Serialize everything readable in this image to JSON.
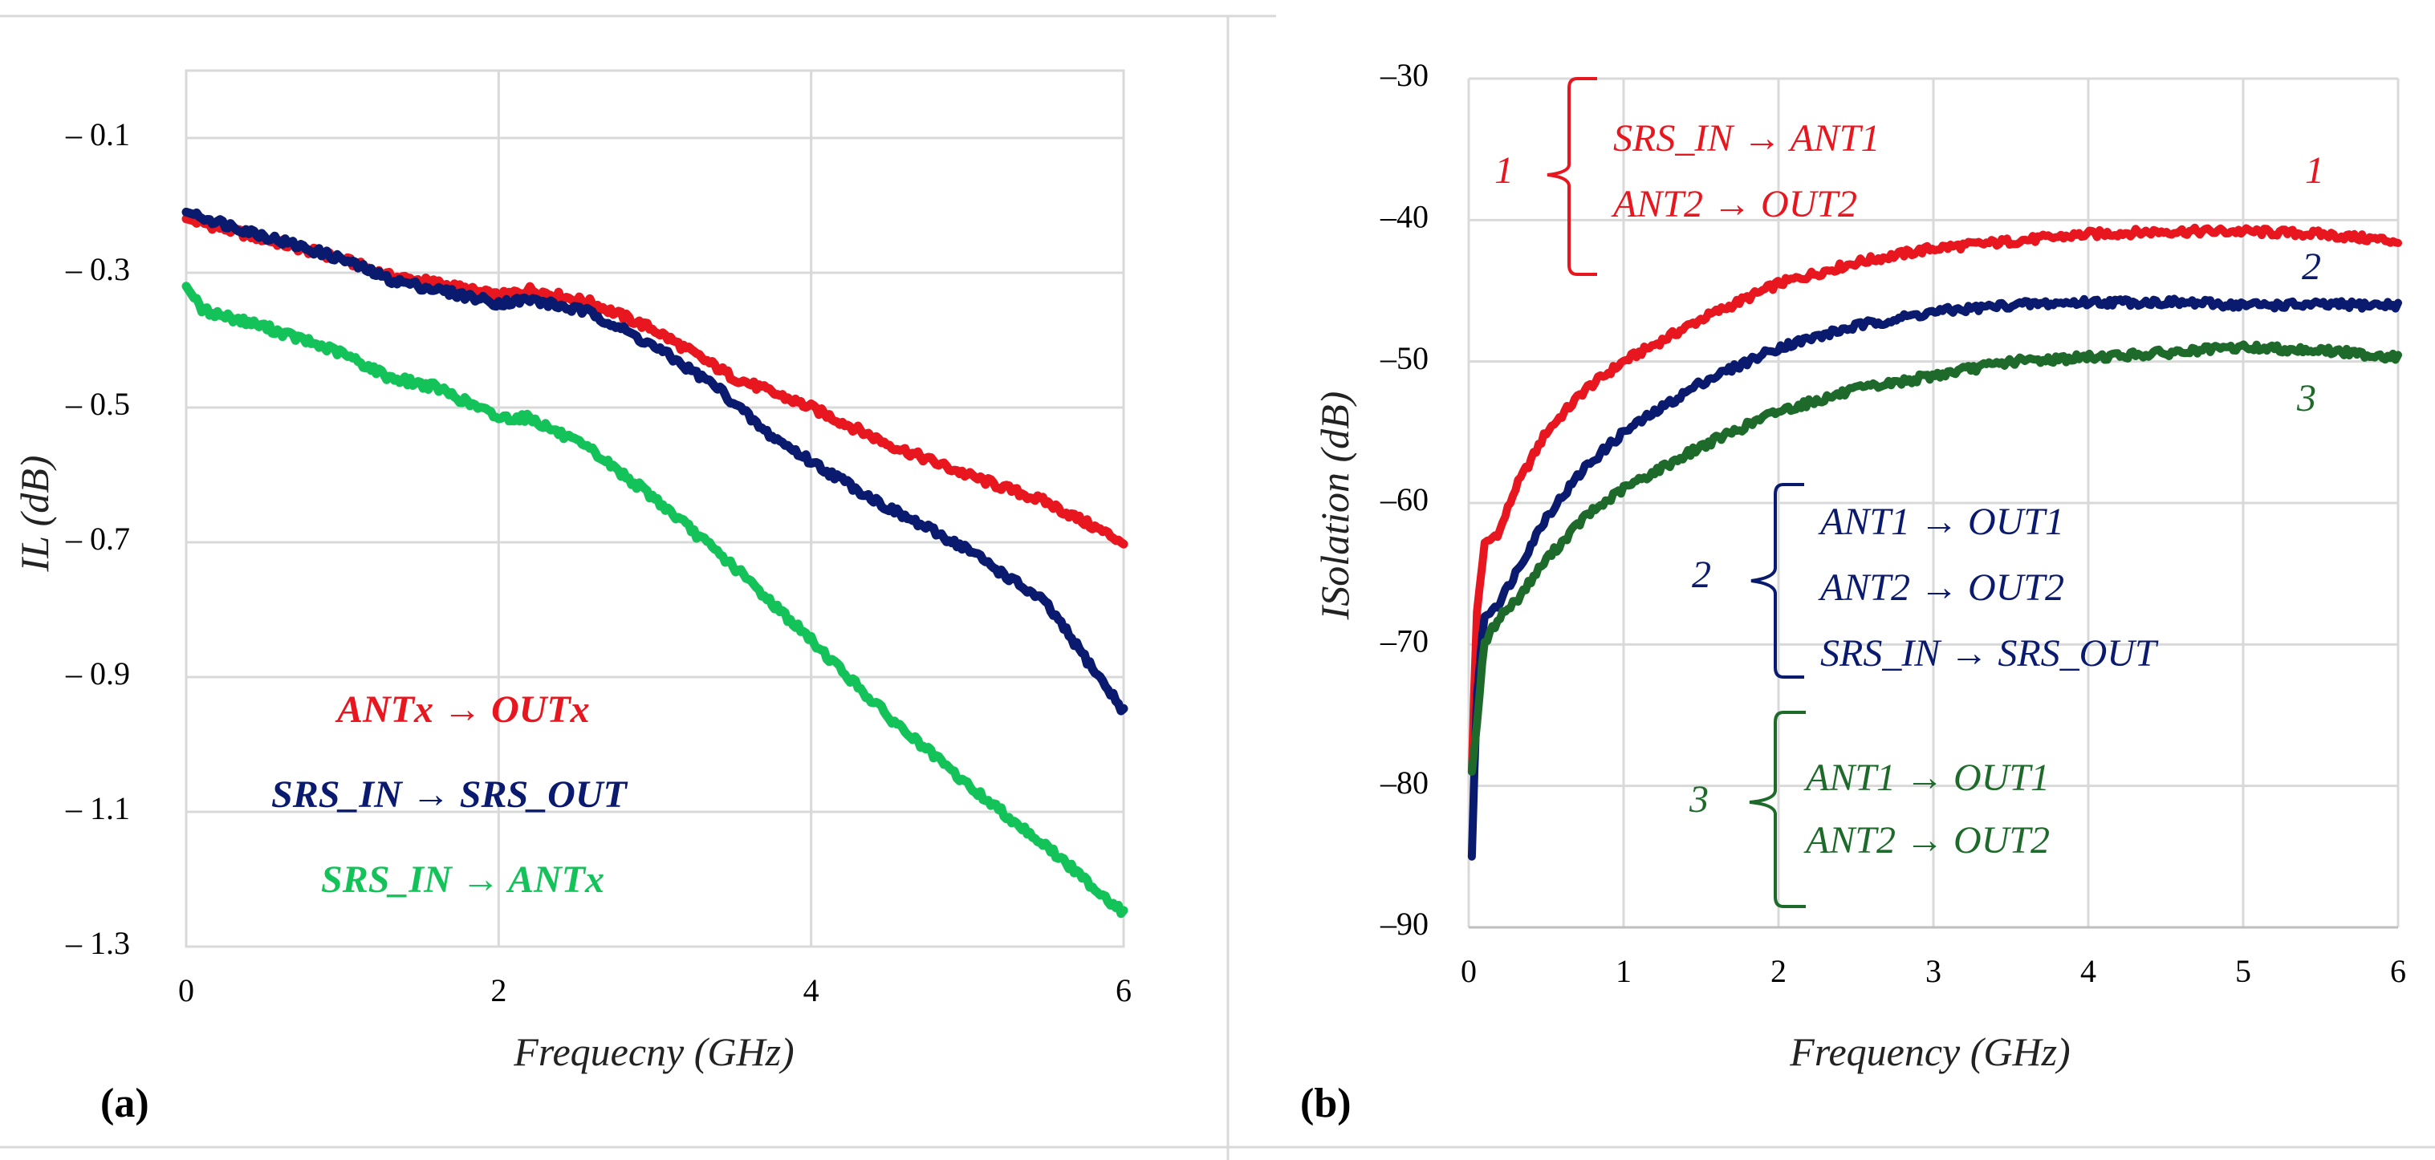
{
  "colors": {
    "red": "#e8161e",
    "navy": "#0a1a6e",
    "green": "#14c25a",
    "darkgreen": "#1d6a2a"
  },
  "chart_data": [
    {
      "type": "line",
      "panel_label": "(a)",
      "xlabel": "Frequecny (GHz)",
      "ylabel": "IL (dB)",
      "xlim": [
        0,
        6
      ],
      "ylim": [
        -1.3,
        0
      ],
      "xticks": [
        0,
        2,
        4,
        6
      ],
      "xtick_labels": [
        "0",
        "2",
        "4",
        "6"
      ],
      "yticks": [
        -0.1,
        -0.3,
        -0.5,
        -0.7,
        -0.9,
        -1.1,
        -1.3
      ],
      "ytick_labels": [
        "– 0.1",
        "– 0.3",
        "– 0.5",
        "– 0.7",
        "– 0.9",
        "– 1.1",
        "– 1.3"
      ],
      "series": [
        {
          "name": "ANTx → OUTx",
          "color": "#e8161e",
          "x": [
            0,
            0.5,
            1.0,
            1.3,
            1.6,
            2.0,
            2.2,
            2.6,
            3.0,
            3.5,
            4.0,
            4.5,
            5.0,
            5.5,
            6.0
          ],
          "y": [
            -0.22,
            -0.25,
            -0.28,
            -0.305,
            -0.315,
            -0.335,
            -0.325,
            -0.345,
            -0.385,
            -0.455,
            -0.5,
            -0.555,
            -0.6,
            -0.64,
            -0.7
          ]
        },
        {
          "name": "SRS_IN → SRS_OUT",
          "color": "#0a1a6e",
          "x": [
            0,
            0.5,
            1.0,
            1.3,
            1.6,
            2.0,
            2.2,
            2.6,
            3.0,
            3.4,
            3.7,
            4.0,
            4.5,
            5.0,
            5.5,
            6.0
          ],
          "y": [
            -0.21,
            -0.245,
            -0.28,
            -0.31,
            -0.325,
            -0.345,
            -0.34,
            -0.36,
            -0.41,
            -0.47,
            -0.535,
            -0.58,
            -0.65,
            -0.71,
            -0.79,
            -0.95
          ]
        },
        {
          "name": "SRS_IN → ANTx",
          "color": "#14c25a",
          "x": [
            0,
            0.1,
            0.5,
            1.0,
            1.3,
            1.6,
            2.0,
            2.2,
            2.6,
            3.0,
            3.5,
            4.0,
            4.5,
            5.0,
            5.5,
            6.0
          ],
          "y": [
            -0.32,
            -0.355,
            -0.38,
            -0.42,
            -0.455,
            -0.47,
            -0.515,
            -0.515,
            -0.565,
            -0.635,
            -0.735,
            -0.845,
            -0.96,
            -1.06,
            -1.15,
            -1.25
          ]
        }
      ],
      "legend": {
        "position": "bottom-left",
        "entries": [
          "ANTx → OUTx",
          "SRS_IN → SRS_OUT",
          "SRS_IN → ANTx"
        ]
      }
    },
    {
      "type": "line",
      "panel_label": "(b)",
      "xlabel": "Frequency (GHz)",
      "ylabel": "ISolation (dB)",
      "xlim": [
        0,
        6
      ],
      "ylim": [
        -90,
        -30
      ],
      "xticks": [
        0,
        1,
        2,
        3,
        4,
        5,
        6
      ],
      "xtick_labels": [
        "0",
        "1",
        "2",
        "3",
        "4",
        "5",
        "6"
      ],
      "yticks": [
        -30,
        -40,
        -50,
        -60,
        -70,
        -80,
        -90
      ],
      "ytick_labels": [
        "–30",
        "–40",
        "–50",
        "–60",
        "–70",
        "–80",
        "–90"
      ],
      "series": [
        {
          "name": "1",
          "color": "#e8161e",
          "x": [
            0.02,
            0.05,
            0.1,
            0.2,
            0.3,
            0.5,
            0.75,
            1.0,
            1.5,
            2.0,
            2.5,
            3.0,
            3.5,
            4.0,
            4.5,
            5.0,
            5.5,
            6.0
          ],
          "y": [
            -79,
            -68,
            -63,
            -62,
            -59,
            -55,
            -52,
            -50,
            -47,
            -44.5,
            -43,
            -42,
            -41.5,
            -41,
            -40.8,
            -40.8,
            -41,
            -41.5
          ]
        },
        {
          "name": "2",
          "color": "#0a1a6e",
          "x": [
            0.02,
            0.05,
            0.1,
            0.2,
            0.3,
            0.5,
            0.75,
            1.0,
            1.5,
            2.0,
            2.5,
            3.0,
            3.5,
            4.0,
            4.5,
            5.0,
            5.5,
            6.0
          ],
          "y": [
            -85,
            -74,
            -68,
            -67,
            -65,
            -61,
            -57.5,
            -55,
            -51.5,
            -49,
            -47.5,
            -46.5,
            -46,
            -45.8,
            -45.8,
            -46,
            -46,
            -46
          ]
        },
        {
          "name": "3",
          "color": "#1d6a2a",
          "x": [
            0.02,
            0.05,
            0.1,
            0.2,
            0.3,
            0.5,
            0.75,
            1.0,
            1.5,
            2.0,
            2.5,
            3.0,
            3.5,
            4.0,
            4.5,
            5.0,
            5.5,
            6.0
          ],
          "y": [
            -79,
            -76,
            -70,
            -68,
            -67,
            -64,
            -61,
            -59,
            -56,
            -53.5,
            -52,
            -51,
            -50,
            -49.7,
            -49.4,
            -49,
            -49.2,
            -49.7
          ]
        }
      ],
      "annotations": {
        "group1": {
          "number": "1",
          "lines": [
            "SRS_IN → ANT1",
            "ANT2 → OUT2"
          ]
        },
        "group2": {
          "number": "2",
          "lines": [
            "ANT1 → OUT1",
            "ANT2 → OUT2",
            "SRS_IN → SRS_OUT"
          ]
        },
        "group3": {
          "number": "3",
          "lines": [
            "ANT1 → OUT1",
            "ANT2 → OUT2"
          ]
        },
        "curve_labels": [
          "1",
          "2",
          "3"
        ]
      }
    }
  ]
}
